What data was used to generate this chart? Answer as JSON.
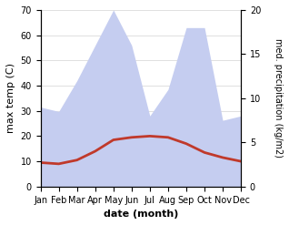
{
  "months": [
    "Jan",
    "Feb",
    "Mar",
    "Apr",
    "May",
    "Jun",
    "Jul",
    "Aug",
    "Sep",
    "Oct",
    "Nov",
    "Dec"
  ],
  "month_x": [
    1,
    2,
    3,
    4,
    5,
    6,
    7,
    8,
    9,
    10,
    11,
    12
  ],
  "temperature": [
    9.5,
    9.0,
    10.5,
    14.0,
    18.5,
    19.5,
    20.0,
    19.5,
    17.0,
    13.5,
    11.5,
    10.0
  ],
  "precipitation": [
    9.0,
    8.5,
    12.0,
    16.0,
    20.0,
    16.0,
    8.0,
    11.0,
    18.0,
    18.0,
    7.5,
    8.0
  ],
  "temp_color": "#c0392b",
  "precip_fill_color": "#c5cdf0",
  "background_color": "#ffffff",
  "ylabel_left": "max temp (C)",
  "ylabel_right": "med. precipitation (kg/m2)",
  "xlabel": "date (month)",
  "ylim_left": [
    0,
    70
  ],
  "ylim_right": [
    0,
    20
  ],
  "yticks_left": [
    0,
    10,
    20,
    30,
    40,
    50,
    60,
    70
  ],
  "yticks_right": [
    0,
    5,
    10,
    15,
    20
  ],
  "temp_linewidth": 2.0,
  "label_fontsize": 8,
  "tick_fontsize": 7
}
